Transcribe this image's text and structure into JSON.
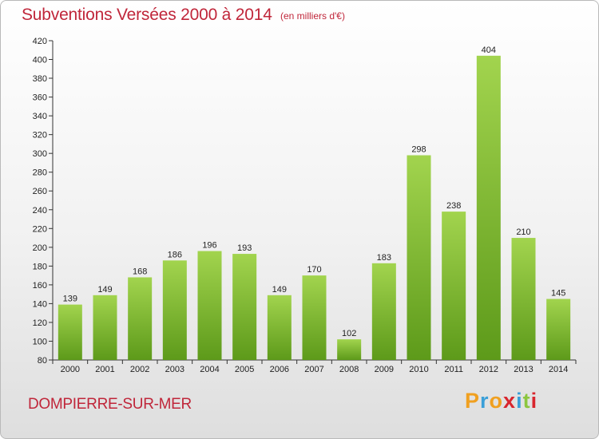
{
  "header": {
    "title": "Subventions Versées 2000 à 2014",
    "subtitle": "(en milliers d'€)"
  },
  "footer": {
    "commune": "DOMPIERRE-SUR-MER",
    "logo_letters": [
      "P",
      "r",
      "o",
      "x",
      "i",
      "t",
      "i"
    ],
    "logo_colors": [
      "#f0a020",
      "#3a9fd8",
      "#f0a020",
      "#d8262e",
      "#3a9fd8",
      "#8cc63f",
      "#d8262e"
    ]
  },
  "chart_data": {
    "type": "bar",
    "title": "Subventions Versées 2000 à 2014",
    "subtitle": "(en milliers d'€)",
    "categories": [
      "2000",
      "2001",
      "2002",
      "2003",
      "2004",
      "2005",
      "2006",
      "2007",
      "2008",
      "2009",
      "2010",
      "2011",
      "2012",
      "2013",
      "2014"
    ],
    "values": [
      139,
      149,
      168,
      186,
      196,
      193,
      149,
      170,
      102,
      183,
      298,
      238,
      404,
      210,
      145
    ],
    "ylim": [
      80,
      420
    ],
    "yticks": [
      80,
      100,
      120,
      140,
      160,
      180,
      200,
      220,
      240,
      260,
      280,
      300,
      320,
      340,
      360,
      380,
      400,
      420
    ],
    "grid": false,
    "bar_color_light": "#a2d44e",
    "bar_color_dark": "#5d9a1a"
  }
}
